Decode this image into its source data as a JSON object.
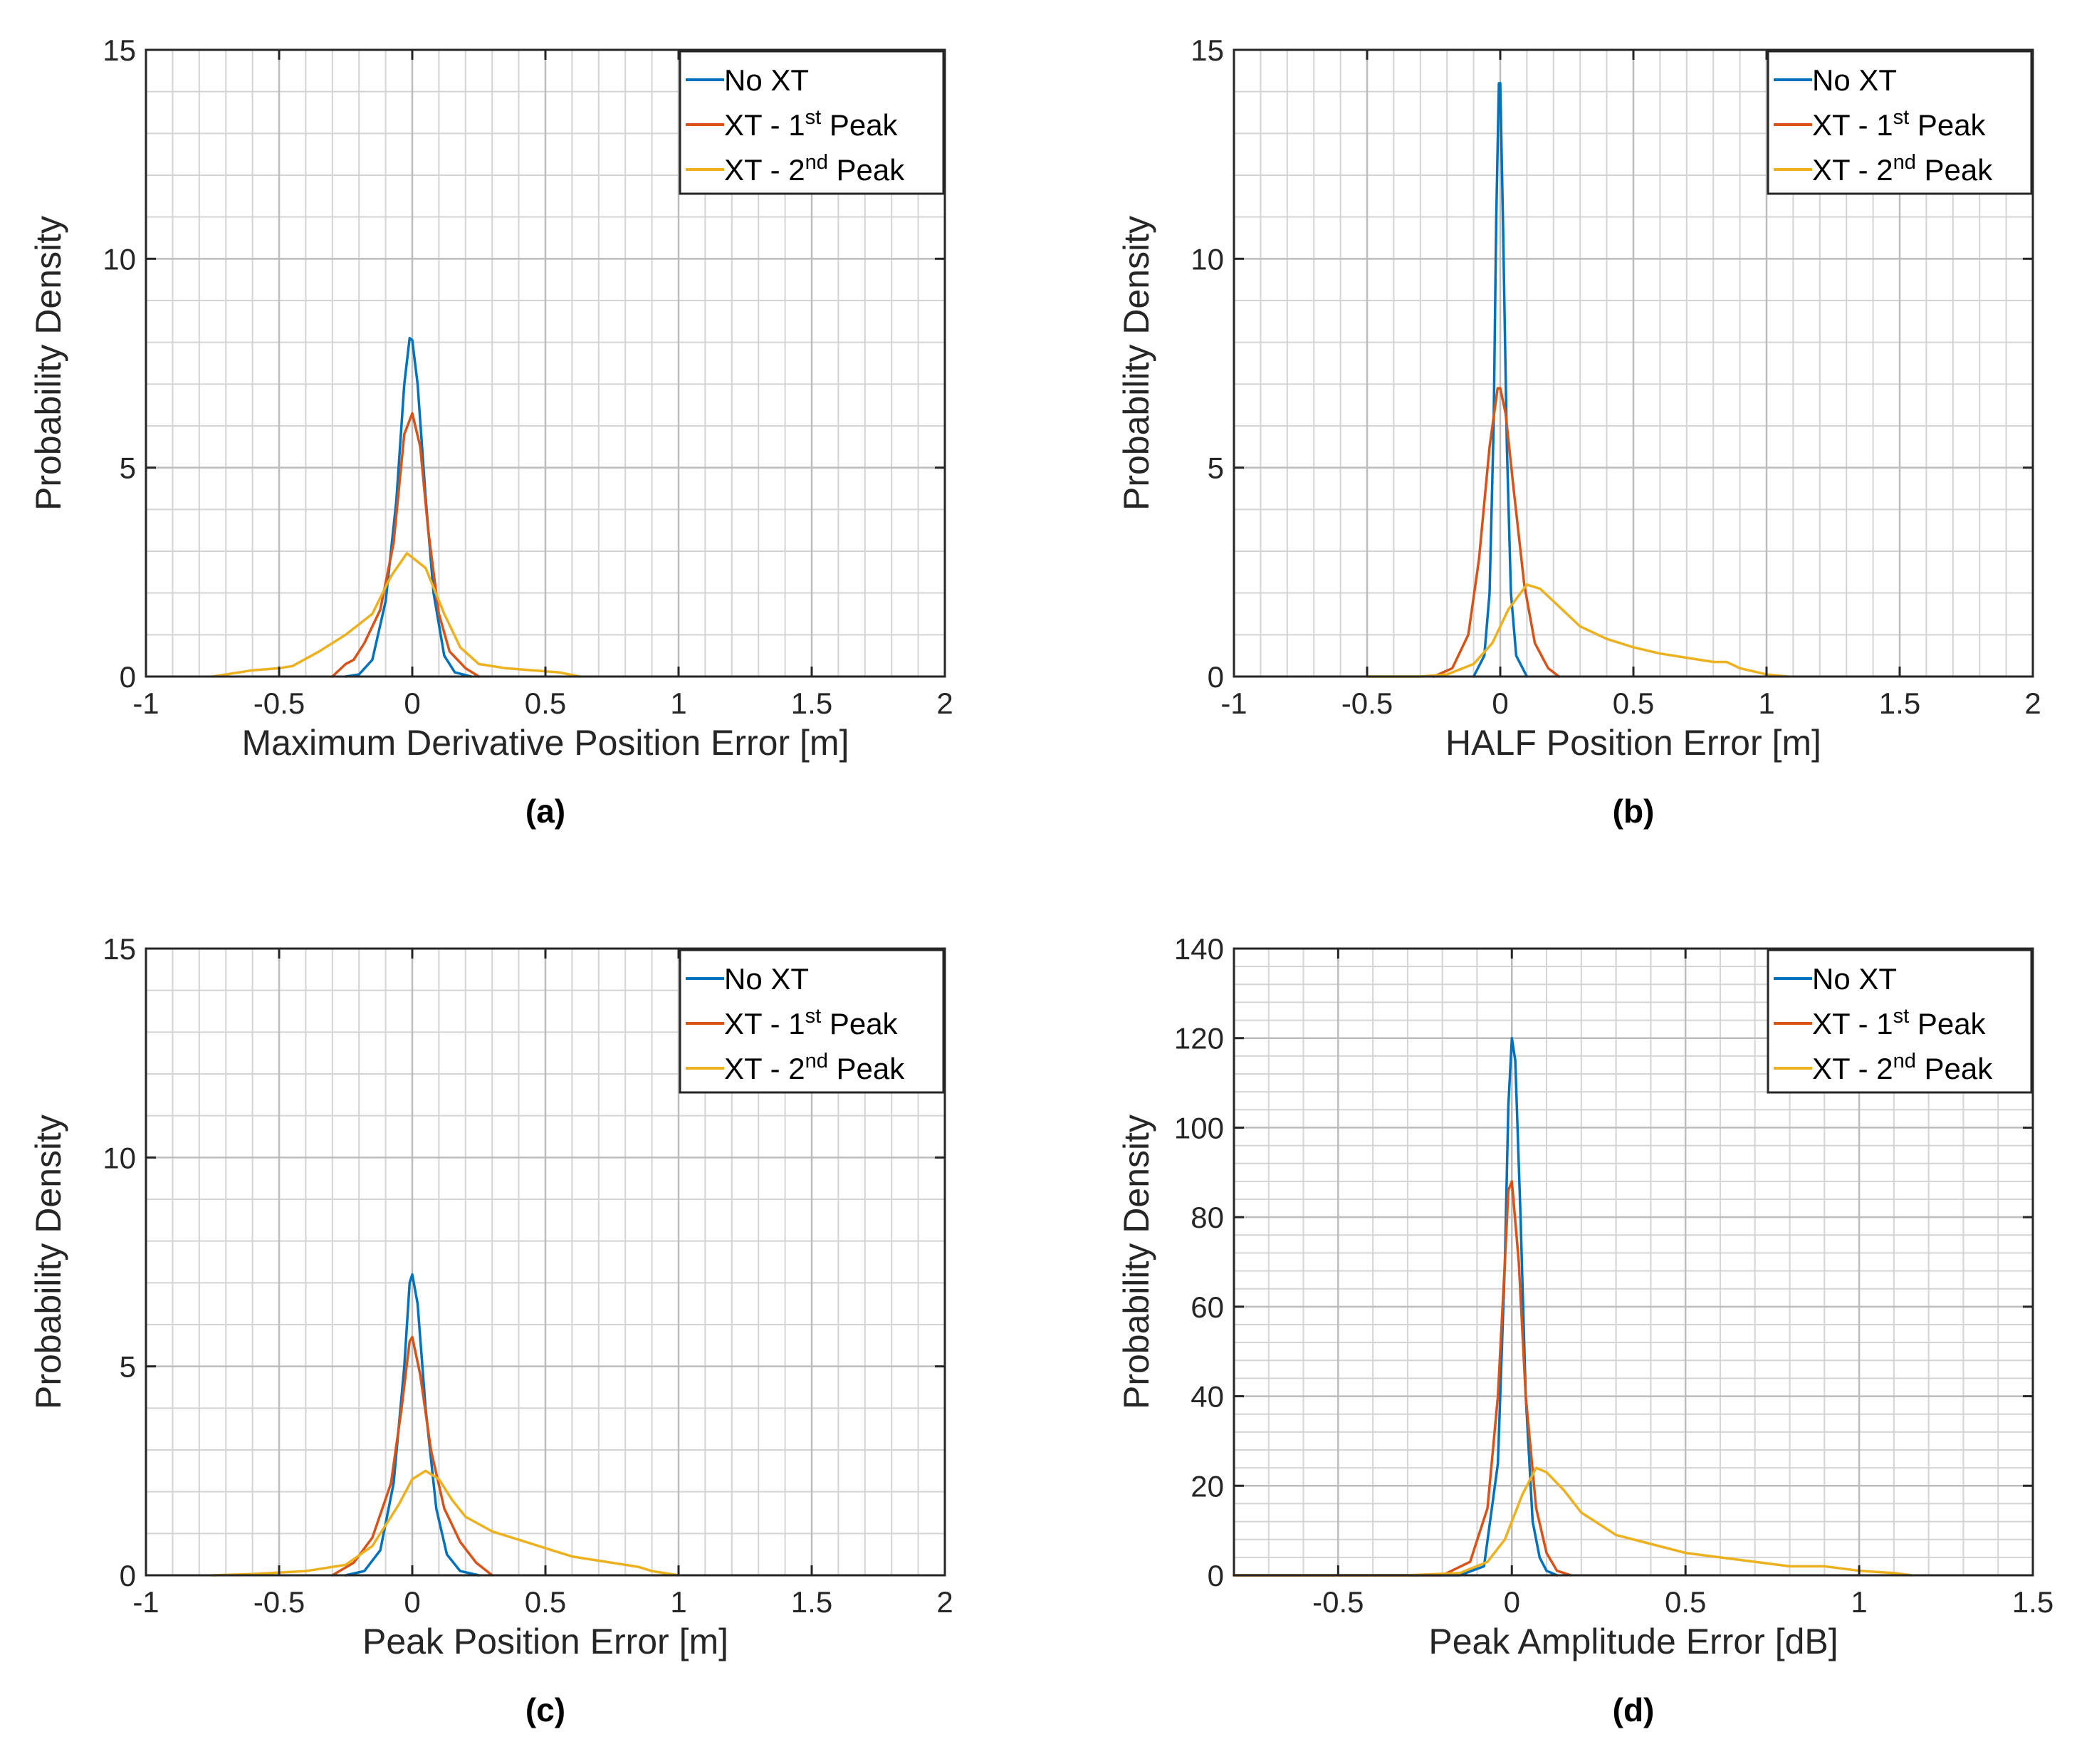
{
  "series_colors": {
    "no_xt": "#0072BD",
    "xt_1st": "#D95319",
    "xt_2nd": "#EDB120"
  },
  "legend": {
    "no_xt": "No XT",
    "xt_1st_prefix": "XT - 1",
    "xt_1st_sup": "st",
    "xt_1st_suffix": " Peak",
    "xt_2nd_prefix": "XT - 2",
    "xt_2nd_sup": "nd",
    "xt_2nd_suffix": " Peak"
  },
  "chart_data": [
    {
      "type": "line",
      "panel": "(a)",
      "xlabel": "Maximum Derivative Position Error [m]",
      "ylabel": "Probability Density",
      "xlim": [
        -1,
        2
      ],
      "ylim": [
        0,
        15
      ],
      "xticks": [
        -1,
        -0.5,
        0,
        0.5,
        1,
        1.5,
        2
      ],
      "xtick_labels": [
        "-1",
        "-0.5",
        "0",
        "0.5",
        "1",
        "1.5",
        "2"
      ],
      "yticks": [
        0,
        5,
        10,
        15
      ],
      "ytick_labels": [
        "0",
        "5",
        "10",
        "15"
      ],
      "grid": true,
      "minor_grid": true,
      "legend_position": "top-right",
      "series": [
        {
          "name": "No XT",
          "x": [
            -0.25,
            -0.2,
            -0.15,
            -0.1,
            -0.06,
            -0.03,
            -0.01,
            0,
            0.02,
            0.05,
            0.08,
            0.12,
            0.16,
            0.22
          ],
          "y": [
            0,
            0.05,
            0.4,
            1.8,
            4.2,
            7,
            8.1,
            8.05,
            7,
            4.3,
            2,
            0.5,
            0.1,
            0
          ]
        },
        {
          "name": "XT - 1st Peak",
          "x": [
            -0.3,
            -0.25,
            -0.22,
            -0.18,
            -0.12,
            -0.07,
            -0.03,
            0,
            0.03,
            0.06,
            0.1,
            0.14,
            0.2,
            0.25
          ],
          "y": [
            0,
            0.3,
            0.4,
            0.8,
            1.6,
            3.2,
            5.8,
            6.3,
            5.5,
            3.5,
            1.5,
            0.6,
            0.2,
            0
          ]
        },
        {
          "name": "XT - 2nd Peak",
          "x": [
            -0.75,
            -0.6,
            -0.5,
            -0.45,
            -0.35,
            -0.25,
            -0.15,
            -0.08,
            -0.02,
            0.05,
            0.12,
            0.18,
            0.25,
            0.35,
            0.45,
            0.55,
            0.63
          ],
          "y": [
            0,
            0.15,
            0.2,
            0.25,
            0.6,
            1,
            1.5,
            2.4,
            2.95,
            2.6,
            1.5,
            0.7,
            0.3,
            0.2,
            0.15,
            0.1,
            0
          ]
        }
      ]
    },
    {
      "type": "line",
      "panel": "(b)",
      "xlabel": "HALF Position Error [m]",
      "ylabel": "Probability Density",
      "xlim": [
        -1,
        2
      ],
      "ylim": [
        0,
        15
      ],
      "xticks": [
        -1,
        -0.5,
        0,
        0.5,
        1,
        1.5,
        2
      ],
      "xtick_labels": [
        "-1",
        "-0.5",
        "0",
        "0.5",
        "1",
        "1.5",
        "2"
      ],
      "yticks": [
        0,
        5,
        10,
        15
      ],
      "ytick_labels": [
        "0",
        "5",
        "10",
        "15"
      ],
      "grid": true,
      "minor_grid": true,
      "legend_position": "top-right",
      "series": [
        {
          "name": "No XT",
          "x": [
            -0.1,
            -0.06,
            -0.04,
            -0.025,
            -0.015,
            -0.005,
            0,
            0.01,
            0.025,
            0.04,
            0.06,
            0.1
          ],
          "y": [
            0,
            0.5,
            2,
            6,
            11,
            14.2,
            14.2,
            11,
            5.5,
            2,
            0.5,
            0
          ]
        },
        {
          "name": "XT - 1st Peak",
          "x": [
            -0.25,
            -0.18,
            -0.12,
            -0.08,
            -0.04,
            -0.01,
            0,
            0.02,
            0.05,
            0.09,
            0.13,
            0.18,
            0.22
          ],
          "y": [
            0,
            0.2,
            1,
            2.8,
            5.5,
            6.9,
            6.9,
            6.3,
            4.5,
            2.2,
            0.8,
            0.2,
            0
          ]
        },
        {
          "name": "XT - 2nd Peak",
          "x": [
            -0.5,
            -0.3,
            -0.2,
            -0.1,
            -0.03,
            0.03,
            0.1,
            0.15,
            0.2,
            0.3,
            0.4,
            0.5,
            0.6,
            0.7,
            0.8,
            0.85,
            0.9,
            1,
            1.08
          ],
          "y": [
            0,
            0,
            0.05,
            0.3,
            0.8,
            1.6,
            2.2,
            2.1,
            1.8,
            1.2,
            0.9,
            0.7,
            0.55,
            0.45,
            0.35,
            0.35,
            0.2,
            0.05,
            0
          ]
        }
      ]
    },
    {
      "type": "line",
      "panel": "(c)",
      "xlabel": "Peak Position Error [m]",
      "ylabel": "Probability Density",
      "xlim": [
        -1,
        2
      ],
      "ylim": [
        0,
        15
      ],
      "xticks": [
        -1,
        -0.5,
        0,
        0.5,
        1,
        1.5,
        2
      ],
      "xtick_labels": [
        "-1",
        "-0.5",
        "0",
        "0.5",
        "1",
        "1.5",
        "2"
      ],
      "yticks": [
        0,
        5,
        10,
        15
      ],
      "ytick_labels": [
        "0",
        "5",
        "10",
        "15"
      ],
      "grid": true,
      "minor_grid": true,
      "legend_position": "top-right",
      "series": [
        {
          "name": "No XT",
          "x": [
            -0.25,
            -0.18,
            -0.12,
            -0.07,
            -0.03,
            -0.01,
            0,
            0.02,
            0.05,
            0.09,
            0.13,
            0.18,
            0.25
          ],
          "y": [
            0,
            0.1,
            0.6,
            2.2,
            5,
            7,
            7.2,
            6.5,
            4,
            1.6,
            0.5,
            0.1,
            0
          ]
        },
        {
          "name": "XT - 1st Peak",
          "x": [
            -0.3,
            -0.22,
            -0.15,
            -0.08,
            -0.04,
            -0.01,
            0,
            0.03,
            0.07,
            0.12,
            0.18,
            0.24,
            0.3
          ],
          "y": [
            0,
            0.3,
            0.9,
            2.2,
            4,
            5.6,
            5.7,
            4.8,
            3,
            1.6,
            0.8,
            0.3,
            0
          ]
        },
        {
          "name": "XT - 2nd Peak",
          "x": [
            -0.75,
            -0.6,
            -0.4,
            -0.25,
            -0.15,
            -0.05,
            0,
            0.05,
            0.1,
            0.15,
            0.2,
            0.3,
            0.4,
            0.5,
            0.6,
            0.7,
            0.8,
            0.85,
            0.9,
            1
          ],
          "y": [
            0,
            0.03,
            0.1,
            0.25,
            0.7,
            1.7,
            2.3,
            2.5,
            2.3,
            1.8,
            1.4,
            1.05,
            0.85,
            0.65,
            0.45,
            0.35,
            0.25,
            0.2,
            0.1,
            0
          ]
        }
      ]
    },
    {
      "type": "line",
      "panel": "(d)",
      "xlabel": "Peak Amplitude Error [dB]",
      "ylabel": "Probability Density",
      "xlim": [
        -0.8,
        1.5
      ],
      "ylim": [
        0,
        140
      ],
      "xticks": [
        -0.5,
        0,
        0.5,
        1,
        1.5
      ],
      "xtick_labels": [
        "-0.5",
        "0",
        "0.5",
        "1",
        "1.5"
      ],
      "yticks": [
        0,
        20,
        40,
        60,
        80,
        100,
        120,
        140
      ],
      "ytick_labels": [
        "0",
        "20",
        "40",
        "60",
        "80",
        "100",
        "120",
        "140"
      ],
      "grid": true,
      "minor_grid": true,
      "legend_position": "top-right",
      "series": [
        {
          "name": "No XT",
          "x": [
            -0.8,
            -0.15,
            -0.08,
            -0.04,
            -0.02,
            -0.01,
            0,
            0.01,
            0.025,
            0.04,
            0.06,
            0.08,
            0.1,
            0.13
          ],
          "y": [
            0,
            0,
            2,
            25,
            70,
            105,
            120,
            115,
            80,
            40,
            12,
            4,
            1,
            0
          ]
        },
        {
          "name": "XT - 1st Peak",
          "x": [
            -0.8,
            -0.2,
            -0.12,
            -0.07,
            -0.04,
            -0.02,
            -0.01,
            0,
            0.02,
            0.04,
            0.07,
            0.1,
            0.13,
            0.17
          ],
          "y": [
            0,
            0,
            3,
            15,
            40,
            70,
            86,
            88,
            70,
            40,
            15,
            5,
            1,
            0
          ]
        },
        {
          "name": "XT - 2nd Peak",
          "x": [
            -0.8,
            -0.3,
            -0.15,
            -0.07,
            -0.02,
            0.03,
            0.07,
            0.1,
            0.15,
            0.2,
            0.3,
            0.4,
            0.5,
            0.6,
            0.7,
            0.8,
            0.9,
            1,
            1.1,
            1.15
          ],
          "y": [
            0,
            0,
            0.5,
            3,
            8,
            18,
            24,
            23,
            19,
            14,
            9,
            7,
            5,
            4,
            3,
            2,
            2,
            1,
            0.5,
            0
          ]
        }
      ]
    }
  ]
}
